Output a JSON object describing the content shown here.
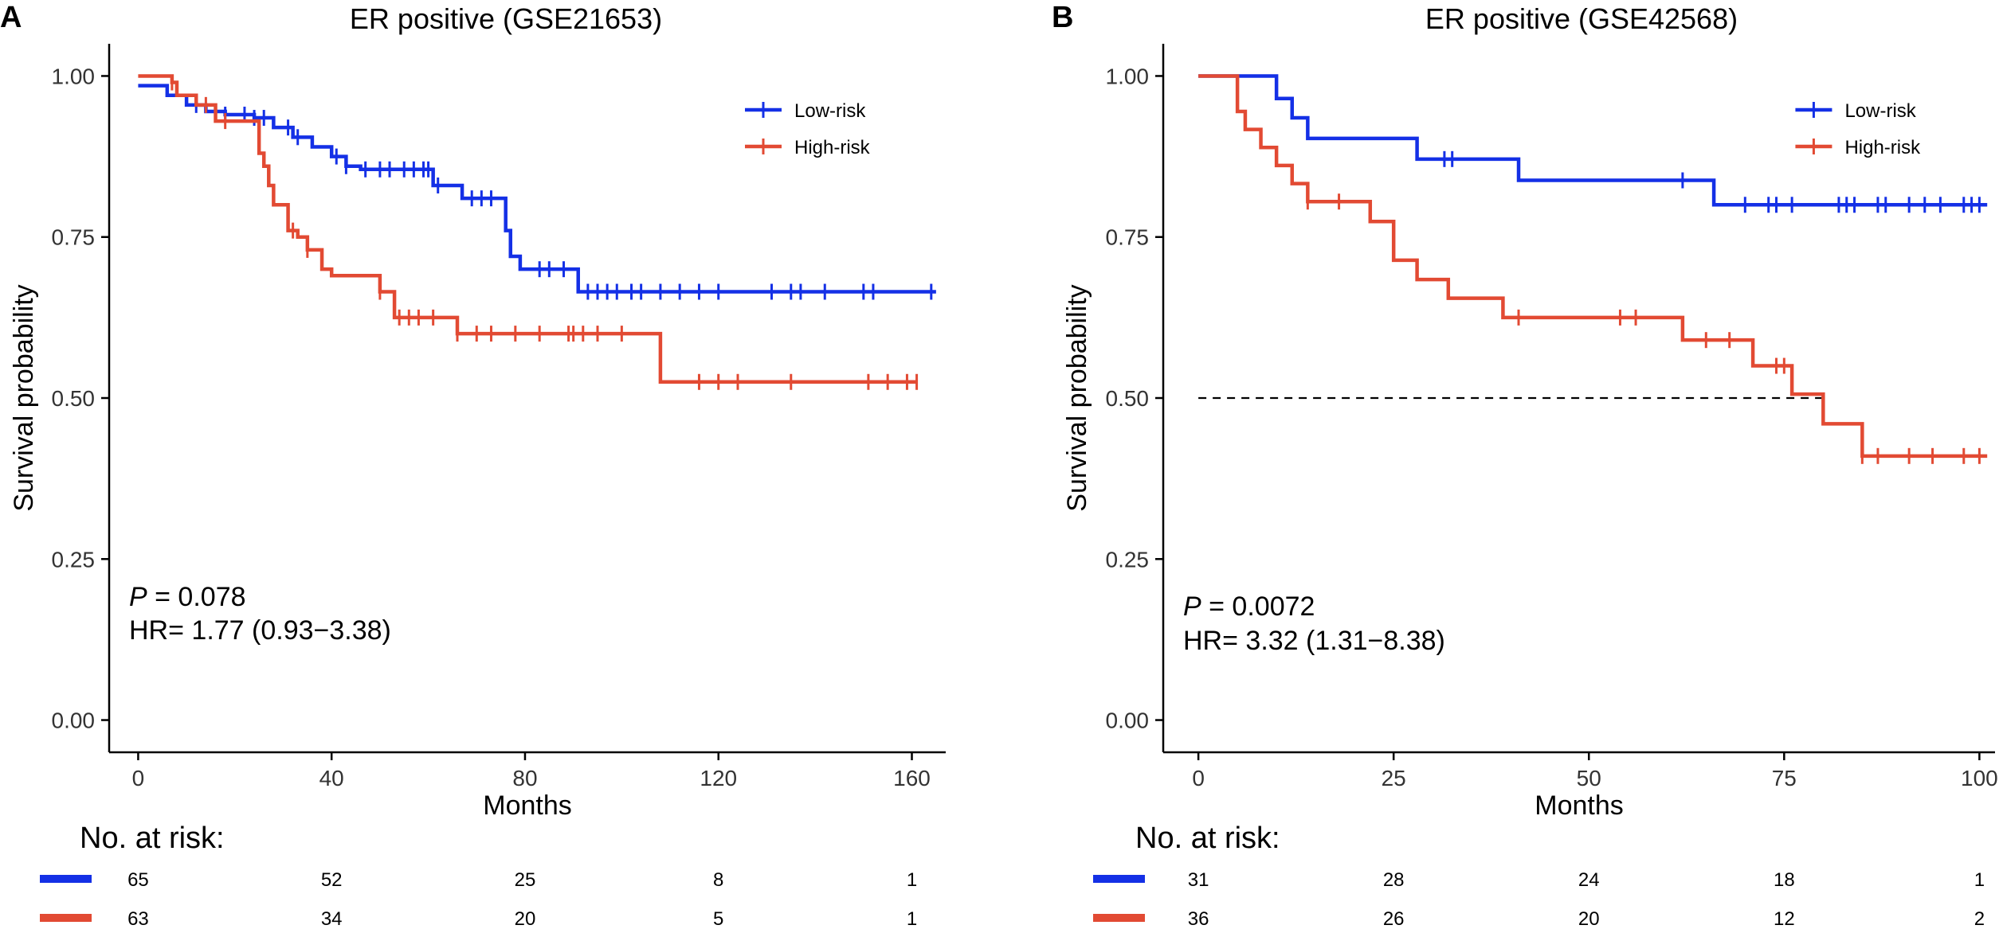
{
  "colors": {
    "low": "#1430e6",
    "high": "#e24a33",
    "axis": "#000000"
  },
  "chart_data": [
    {
      "type": "line",
      "panel_label": "A",
      "title": "ER positive (GSE21653)",
      "xlabel": "Months",
      "ylabel": "Survival probability",
      "xlim": [
        -6,
        167
      ],
      "ylim": [
        -0.05,
        1.05
      ],
      "xticks": [
        0,
        40,
        80,
        120,
        160
      ],
      "xtick_labels": [
        "0",
        "40",
        "80",
        "120",
        "160"
      ],
      "yticks": [
        0,
        0.25,
        0.5,
        0.75,
        1
      ],
      "ytick_labels": [
        "0.00",
        "0.25",
        "0.50",
        "0.75",
        "1.00"
      ],
      "legend_position": "top-right",
      "p_prefix": "P",
      "p_value": " = 0.078",
      "hr_text": "HR= 1.77 (0.93−3.38)",
      "risk_title": "No. at risk:",
      "risk_times": [
        0,
        40,
        80,
        120,
        160
      ],
      "series": [
        {
          "name": "Low-risk",
          "color_key": "low",
          "x": [
            0,
            2,
            6,
            10,
            14,
            18,
            20,
            24,
            28,
            32,
            36,
            40,
            43,
            46,
            61,
            67,
            75,
            76,
            77,
            79,
            91,
            165
          ],
          "y": [
            0.985,
            0.985,
            0.97,
            0.955,
            0.945,
            0.94,
            0.94,
            0.935,
            0.92,
            0.905,
            0.89,
            0.875,
            0.86,
            0.855,
            0.83,
            0.81,
            0.81,
            0.76,
            0.72,
            0.7,
            0.665,
            0.665
          ],
          "censor": [
            12,
            18,
            22,
            24,
            26,
            31,
            33,
            41,
            43,
            47,
            50,
            52,
            55,
            57,
            59,
            60,
            62,
            69,
            71,
            73,
            83,
            85,
            88,
            93,
            95,
            97,
            99,
            102,
            104,
            108,
            112,
            116,
            120,
            131,
            135,
            137,
            142,
            150,
            152,
            164
          ],
          "risk": [
            "65",
            "52",
            "25",
            "8",
            "1"
          ]
        },
        {
          "name": "High-risk",
          "color_key": "high",
          "x": [
            0,
            5,
            7,
            8,
            10,
            12,
            16,
            22,
            25,
            26,
            27,
            28,
            29,
            31,
            33,
            35,
            38,
            40,
            50,
            53,
            66,
            108,
            161
          ],
          "y": [
            1.0,
            1.0,
            0.99,
            0.97,
            0.97,
            0.955,
            0.93,
            0.93,
            0.88,
            0.86,
            0.83,
            0.8,
            0.8,
            0.76,
            0.75,
            0.73,
            0.7,
            0.69,
            0.665,
            0.625,
            0.6,
            0.525,
            0.525
          ],
          "censor": [
            7,
            14,
            18,
            32,
            35,
            50,
            54,
            56,
            58,
            61,
            66,
            70,
            73,
            78,
            83,
            89,
            90,
            92,
            95,
            100,
            116,
            120,
            124,
            135,
            151,
            155,
            159,
            161
          ],
          "risk": [
            "63",
            "34",
            "20",
            "5",
            "1"
          ]
        }
      ]
    },
    {
      "type": "line",
      "panel_label": "B",
      "title": "ER positive (GSE42568)",
      "xlabel": "Months",
      "ylabel": "Survival probability",
      "xlim": [
        -4.5,
        102
      ],
      "ylim": [
        -0.05,
        1.05
      ],
      "xticks": [
        0,
        25,
        50,
        75,
        100
      ],
      "xtick_labels": [
        "0",
        "25",
        "50",
        "75",
        "100"
      ],
      "yticks": [
        0,
        0.25,
        0.5,
        0.75,
        1
      ],
      "ytick_labels": [
        "0.00",
        "0.25",
        "0.50",
        "0.75",
        "1.00"
      ],
      "legend_position": "top-right",
      "median_line": {
        "x": [
          0,
          80
        ],
        "y": 0.5
      },
      "p_prefix": "P",
      "p_value": " = 0.0072",
      "hr_text": "HR= 3.32 (1.31−8.38)",
      "risk_title": "No. at risk:",
      "risk_times": [
        0,
        25,
        50,
        75,
        100
      ],
      "series": [
        {
          "name": "Low-risk",
          "color_key": "low",
          "x": [
            0,
            10,
            12,
            14,
            28,
            41,
            62,
            66,
            101
          ],
          "y": [
            1.0,
            0.965,
            0.935,
            0.903,
            0.871,
            0.838,
            0.838,
            0.8,
            0.8
          ],
          "censor": [
            31.5,
            32.5,
            62,
            70,
            73,
            74,
            76,
            82,
            83,
            84,
            87,
            88,
            91,
            93,
            95,
            98,
            99,
            100
          ],
          "risk": [
            "31",
            "28",
            "24",
            "18",
            "1"
          ]
        },
        {
          "name": "High-risk",
          "color_key": "high",
          "x": [
            0,
            5,
            6,
            8,
            10,
            12,
            14,
            15,
            22,
            25,
            28,
            32,
            39,
            62,
            69,
            71,
            76,
            80,
            85,
            101
          ],
          "y": [
            1.0,
            0.945,
            0.917,
            0.889,
            0.861,
            0.833,
            0.805,
            0.805,
            0.774,
            0.714,
            0.684,
            0.655,
            0.625,
            0.59,
            0.59,
            0.55,
            0.506,
            0.46,
            0.41,
            0.41
          ],
          "censor": [
            14,
            18,
            41,
            54,
            56,
            65,
            68,
            74,
            75,
            85,
            87,
            91,
            94,
            98,
            100
          ],
          "risk": [
            "36",
            "26",
            "20",
            "12",
            "2"
          ]
        }
      ]
    }
  ]
}
